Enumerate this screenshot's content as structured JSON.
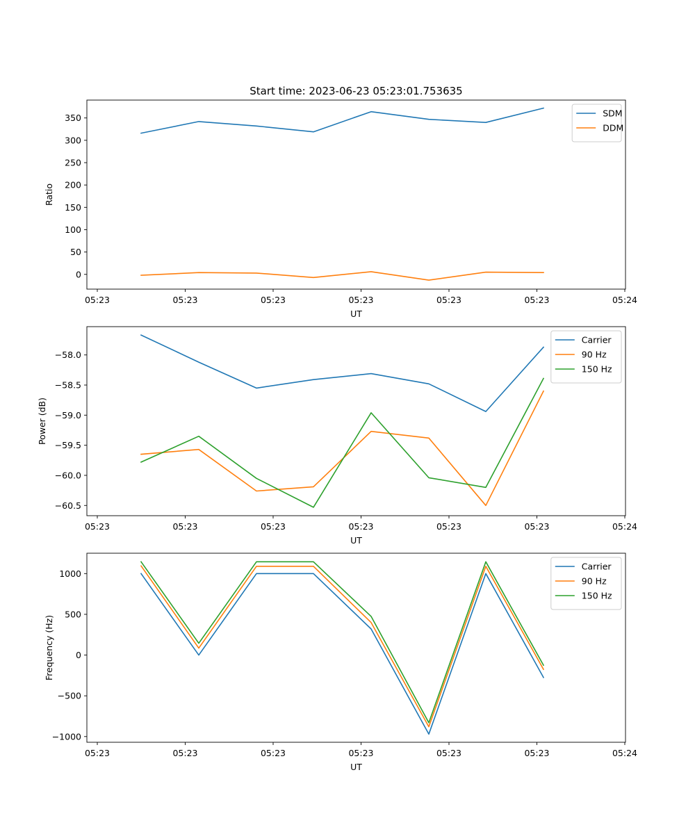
{
  "figure": {
    "title": "Start time: 2023-06-23 05:23:01.753635"
  },
  "chart_data": [
    {
      "type": "line",
      "title": "Start time: 2023-06-23 05:23:01.753635",
      "xlabel": "UT",
      "ylabel": "Ratio",
      "x_tick_labels": [
        "05:23",
        "05:23",
        "05:23",
        "05:23",
        "05:23",
        "05:23",
        "05:24"
      ],
      "y_ticks": [
        0,
        50,
        100,
        150,
        200,
        250,
        300,
        350
      ],
      "ylim": [
        -33,
        390
      ],
      "grid": false,
      "legend_position": "top-right",
      "series": [
        {
          "name": "SDM",
          "color": "#1f77b4",
          "values": [
            316,
            342,
            332,
            319,
            364,
            347,
            340,
            372
          ]
        },
        {
          "name": "DDM",
          "color": "#ff7f0e",
          "values": [
            -2,
            4,
            3,
            -7,
            6,
            -13,
            5,
            4
          ]
        }
      ]
    },
    {
      "type": "line",
      "title": "",
      "xlabel": "UT",
      "ylabel": "Power (dB)",
      "x_tick_labels": [
        "05:23",
        "05:23",
        "05:23",
        "05:23",
        "05:23",
        "05:23",
        "05:24"
      ],
      "y_ticks": [
        -58.0,
        -58.5,
        -59.0,
        -59.5,
        -60.0,
        -60.5
      ],
      "ylim": [
        -60.67,
        -57.53
      ],
      "grid": false,
      "legend_position": "top-right",
      "series": [
        {
          "name": "Carrier",
          "color": "#1f77b4",
          "values": [
            -57.67,
            -58.12,
            -58.55,
            -58.41,
            -58.31,
            -58.48,
            -58.94,
            -57.87
          ]
        },
        {
          "name": "90 Hz",
          "color": "#ff7f0e",
          "values": [
            -59.65,
            -59.57,
            -60.26,
            -60.19,
            -59.27,
            -59.38,
            -60.5,
            -58.6
          ]
        },
        {
          "name": "150 Hz",
          "color": "#2ca02c",
          "values": [
            -59.78,
            -59.35,
            -60.05,
            -60.53,
            -58.96,
            -60.04,
            -60.2,
            -58.39
          ]
        }
      ]
    },
    {
      "type": "line",
      "title": "",
      "xlabel": "UT",
      "ylabel": "Frequency (Hz)",
      "x_tick_labels": [
        "05:23",
        "05:23",
        "05:23",
        "05:23",
        "05:23",
        "05:23",
        "05:24"
      ],
      "y_ticks": [
        1000,
        500,
        0,
        -500,
        -1000
      ],
      "ylim": [
        -1070,
        1250
      ],
      "grid": false,
      "legend_position": "top-right",
      "series": [
        {
          "name": "Carrier",
          "color": "#1f77b4",
          "values": [
            1000,
            0,
            1000,
            1000,
            320,
            -970,
            1000,
            -275
          ]
        },
        {
          "name": "90 Hz",
          "color": "#ff7f0e",
          "values": [
            1095,
            85,
            1090,
            1090,
            400,
            -880,
            1090,
            -175
          ]
        },
        {
          "name": "150 Hz",
          "color": "#2ca02c",
          "values": [
            1145,
            145,
            1145,
            1145,
            475,
            -830,
            1145,
            -125
          ]
        }
      ]
    }
  ]
}
